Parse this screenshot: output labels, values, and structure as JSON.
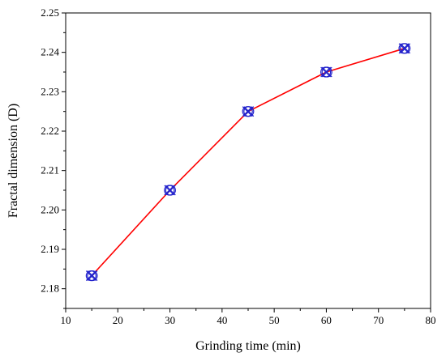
{
  "chart_data": {
    "type": "line",
    "xlabel": "Grinding time (min)",
    "ylabel": "Fractal dimension (D)",
    "xlim": [
      10,
      80
    ],
    "ylim": [
      2.175,
      2.25
    ],
    "x_ticks": [
      10,
      20,
      30,
      40,
      50,
      60,
      70,
      80
    ],
    "x_tick_labels": [
      "10",
      "20",
      "30",
      "40",
      "50",
      "60",
      "70",
      "80"
    ],
    "y_ticks": [
      2.18,
      2.19,
      2.2,
      2.21,
      2.22,
      2.23,
      2.24,
      2.25
    ],
    "y_tick_labels": [
      "2.18",
      "2.19",
      "2.20",
      "2.21",
      "2.22",
      "2.23",
      "2.24",
      "2.25"
    ],
    "grid": false,
    "series": [
      {
        "x": [
          15,
          30,
          45,
          60,
          75
        ],
        "values": [
          2.1833,
          2.205,
          2.225,
          2.235,
          2.241
        ],
        "line_color": "#ff0000",
        "marker": "circled-x",
        "marker_color": "#2222cc"
      }
    ]
  }
}
